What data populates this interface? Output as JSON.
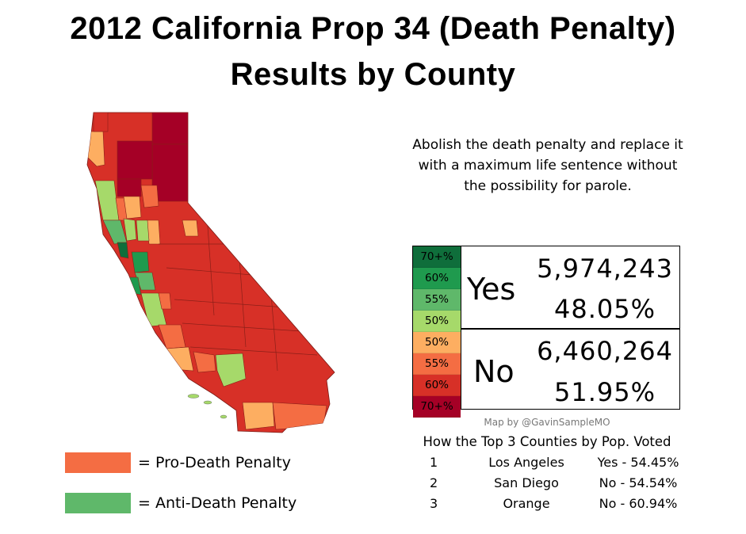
{
  "title_line1": "2012 California Prop 34 (Death Penalty)",
  "title_line2": "Results by County",
  "description": "Abolish the death penalty and replace it with a maximum life sentence without the possibility for parole.",
  "legend": {
    "yes_scale": [
      {
        "label": "70+%",
        "color": "#0f6e3b"
      },
      {
        "label": "60%",
        "color": "#1f9a4e"
      },
      {
        "label": "55%",
        "color": "#5fb86a"
      },
      {
        "label": "50%",
        "color": "#a6d96a"
      }
    ],
    "no_scale": [
      {
        "label": "50%",
        "color": "#fdae61"
      },
      {
        "label": "55%",
        "color": "#f46d43"
      },
      {
        "label": "60%",
        "color": "#d73027"
      },
      {
        "label": "70+%",
        "color": "#a50026"
      }
    ]
  },
  "results": {
    "yes": {
      "label": "Yes",
      "votes": "5,974,243",
      "percent": "48.05%"
    },
    "no": {
      "label": "No",
      "votes": "6,460,264",
      "percent": "51.95%"
    }
  },
  "credit": "Map by @GavinSampleMO",
  "top_counties": {
    "title": "How the Top 3 Counties by Pop. Voted",
    "rows": [
      {
        "rank": "1",
        "county": "Los Angeles",
        "result": "Yes - 54.45%"
      },
      {
        "rank": "2",
        "county": "San Diego",
        "result": "No - 54.54%"
      },
      {
        "rank": "3",
        "county": "Orange",
        "result": "No - 60.94%"
      }
    ]
  },
  "key": [
    {
      "label": "= Pro-Death Penalty",
      "color": "#f46d43"
    },
    {
      "label": "= Anti-Death Penalty",
      "color": "#5fb86a"
    }
  ]
}
